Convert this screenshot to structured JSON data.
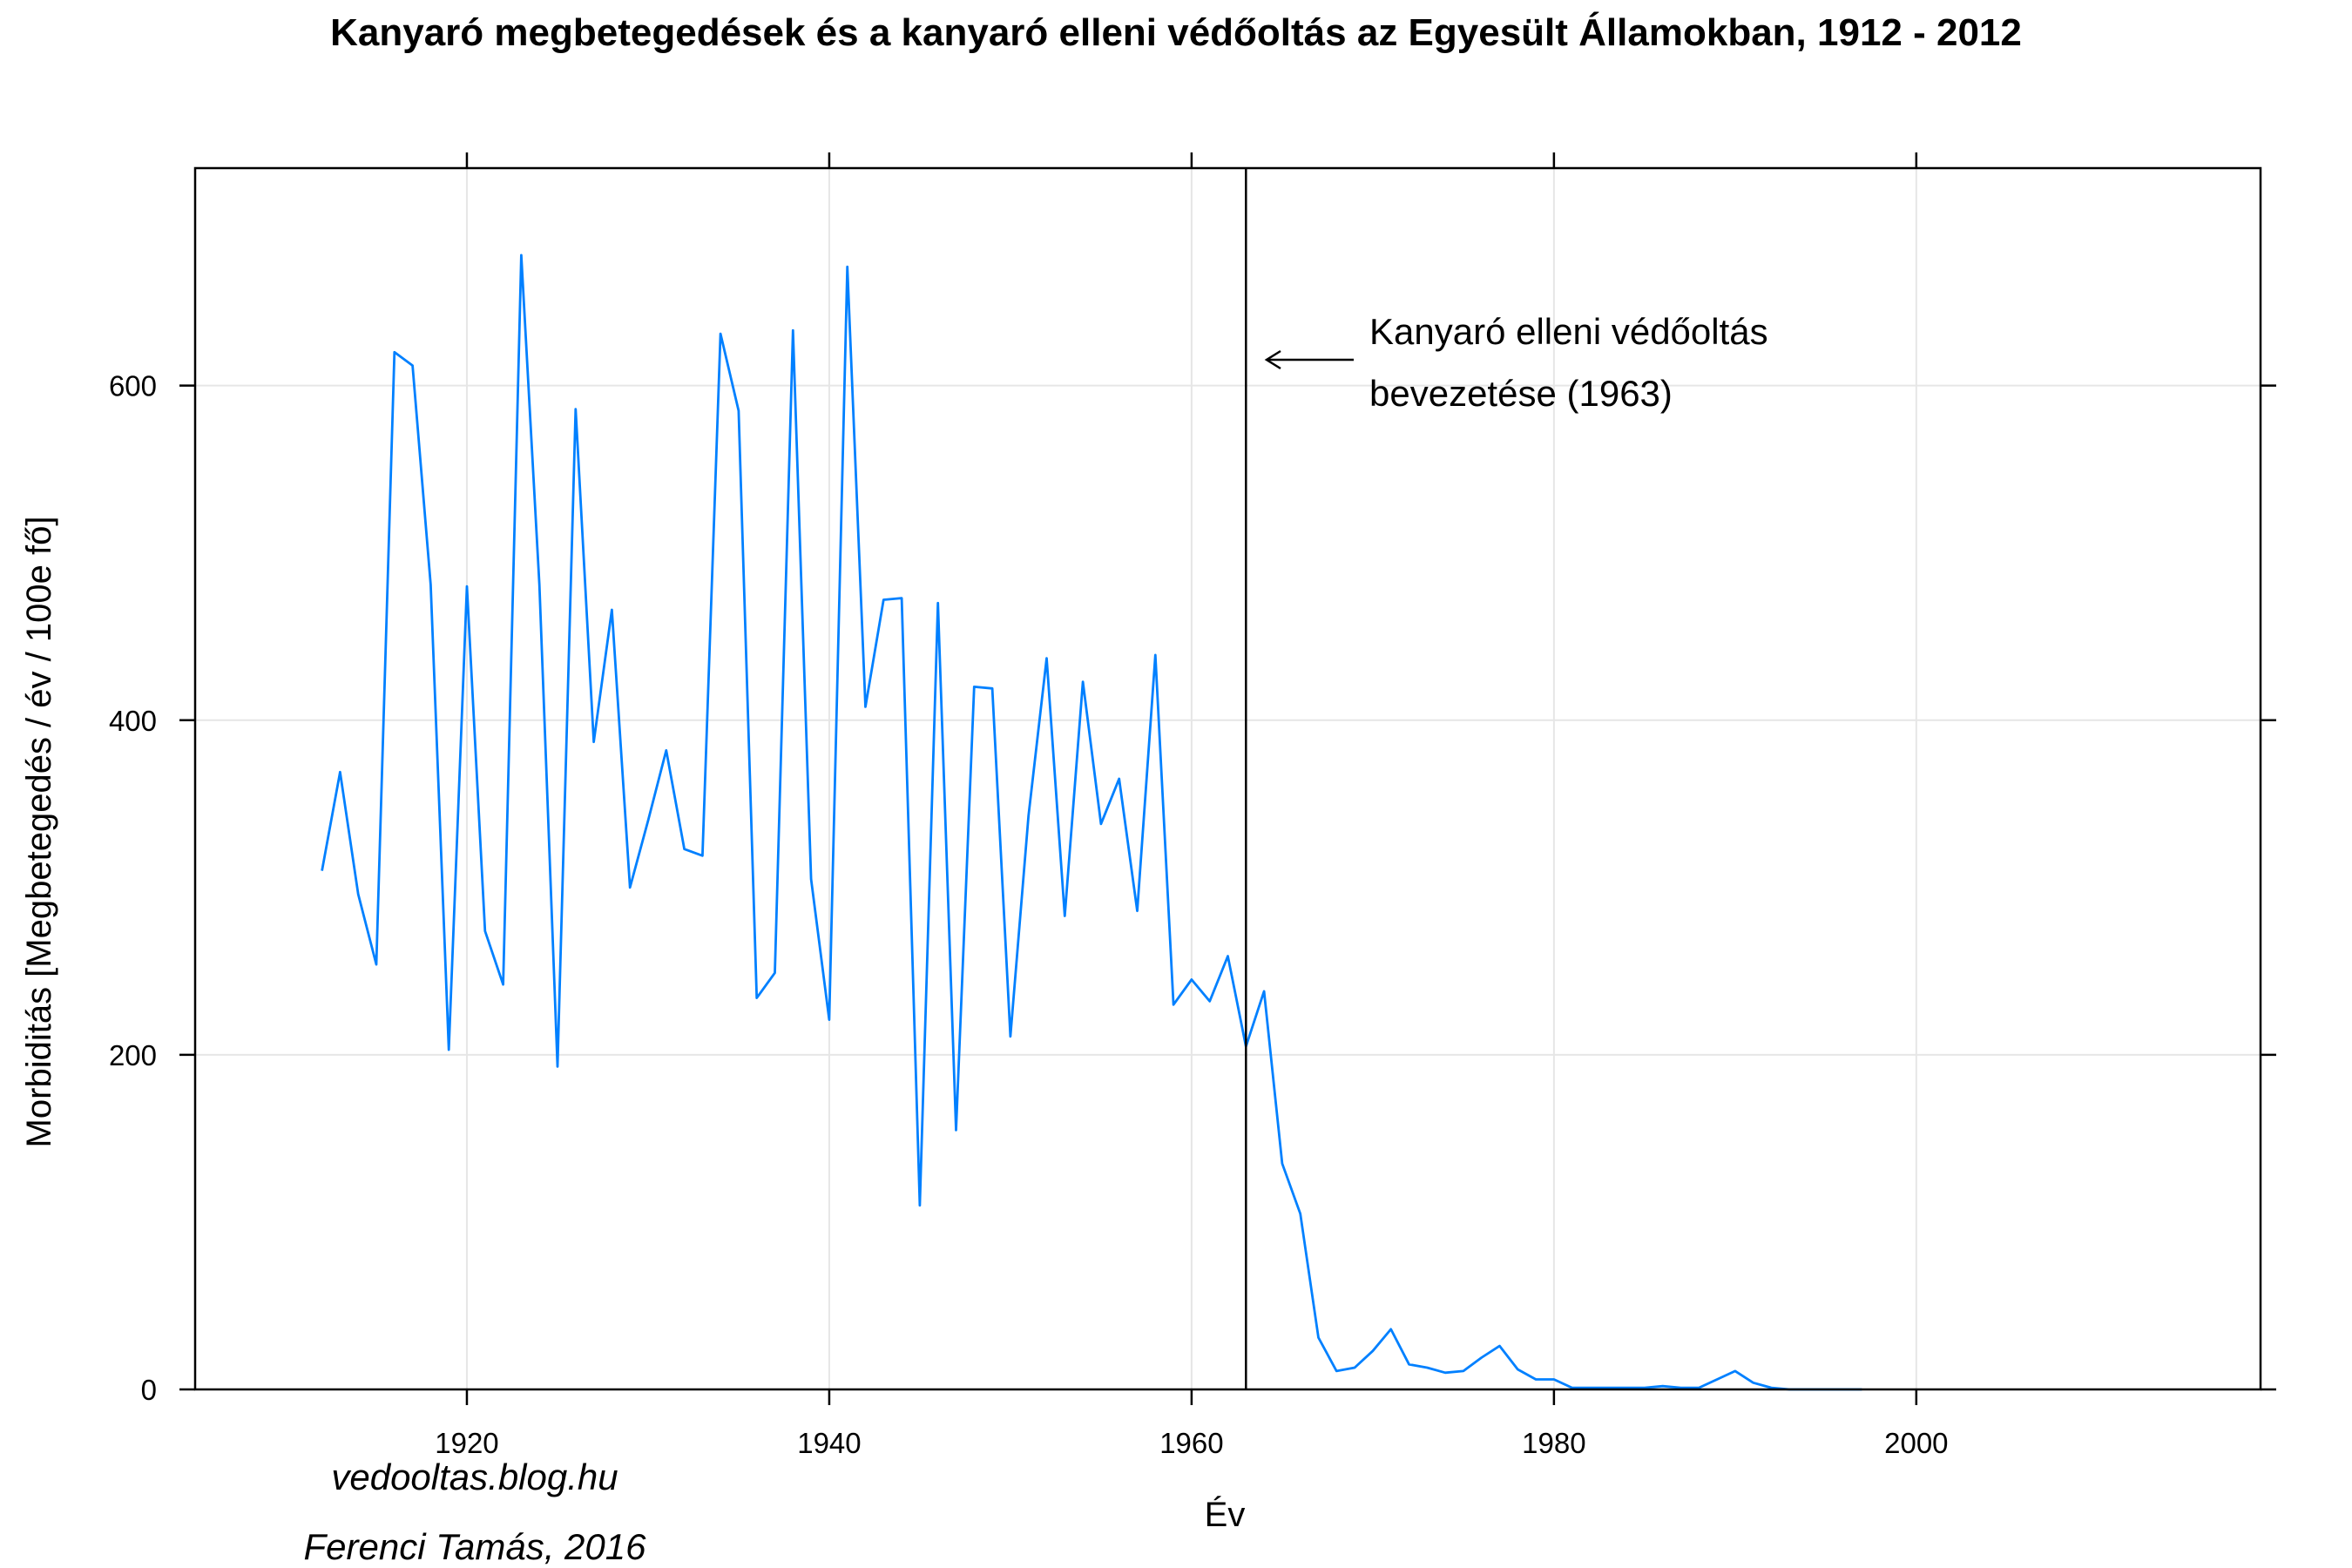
{
  "colors": {
    "series": "#0080ff",
    "grid": "#e6e6e6",
    "frame": "#000000"
  },
  "chart_data": {
    "type": "line",
    "title": "Kanyaró megbetegedések és a kanyaró elleni védőoltás az Egyesült Államokban, 1912 - 2012",
    "xlabel": "Év",
    "ylabel": "Morbiditás [Megbetegedés / év / 100e fő]",
    "xlim": [
      1905,
      2019
    ],
    "ylim": [
      0,
      730
    ],
    "x_ticks": [
      1920,
      1940,
      1960,
      1980,
      2000
    ],
    "y_ticks": [
      0,
      200,
      400,
      600
    ],
    "x_tick_labels": [
      "1920",
      "1940",
      "1960",
      "1980",
      "2000"
    ],
    "y_tick_labels": [
      "0",
      "200",
      "400",
      "600"
    ],
    "grid": true,
    "series": [
      {
        "x": [
          1912,
          1913,
          1914,
          1915,
          1916,
          1917,
          1918,
          1919,
          1920,
          1921,
          1922,
          1923,
          1924,
          1925,
          1926,
          1927,
          1928,
          1929,
          1930,
          1931,
          1932,
          1933,
          1934,
          1935,
          1936,
          1937,
          1938,
          1939,
          1940,
          1941,
          1942,
          1943,
          1944,
          1945,
          1946,
          1947,
          1948,
          1949,
          1950,
          1951,
          1952,
          1953,
          1954,
          1955,
          1956,
          1957,
          1958,
          1959,
          1960,
          1961,
          1962,
          1963,
          1964,
          1965,
          1966,
          1967,
          1968,
          1969,
          1970,
          1971,
          1972,
          1973,
          1974,
          1975,
          1976,
          1977,
          1978,
          1979,
          1980,
          1981,
          1982,
          1983,
          1984,
          1985,
          1986,
          1987,
          1988,
          1989,
          1990,
          1991,
          1992,
          1993,
          1994,
          1995,
          1996,
          1997
        ],
        "values": [
          310,
          369,
          296,
          254,
          620,
          612,
          481,
          203,
          480,
          274,
          242,
          678,
          481,
          193,
          586,
          387,
          466,
          300,
          340,
          382,
          323,
          319,
          631,
          585,
          234,
          249,
          633,
          305,
          221,
          671,
          408,
          472,
          473,
          110,
          470,
          155,
          420,
          419,
          211,
          343,
          437,
          283,
          423,
          338,
          365,
          286,
          439,
          230,
          245,
          232,
          259,
          205,
          238,
          135,
          105,
          31,
          11,
          13,
          23,
          36,
          15,
          13,
          10,
          11,
          19,
          26,
          12,
          6,
          6,
          1,
          1,
          1,
          1,
          1,
          2,
          1,
          1,
          6,
          11,
          4,
          1,
          0,
          0,
          0,
          0,
          0
        ]
      }
    ],
    "annotations": [
      {
        "x": 1963,
        "type": "vline"
      },
      {
        "text_lines": [
          "Kanyaró elleni védőoltás",
          "bevezetése (1963)"
        ],
        "arrow_to_x": 1963
      }
    ]
  },
  "credits": [
    "vedooltas.blog.hu",
    "Ferenci Tamás, 2016"
  ]
}
